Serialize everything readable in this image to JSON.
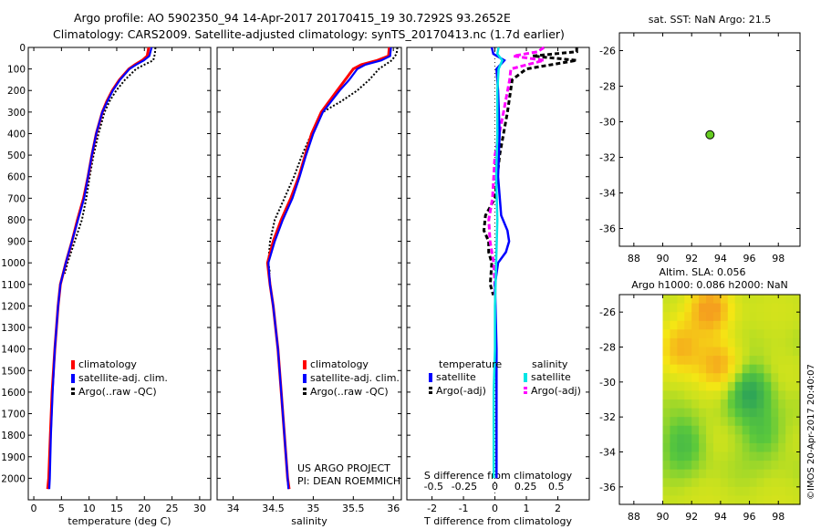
{
  "header": {
    "line1": "Argo profile: AO 5902350_94 14-Apr-2017 20170415_19 30.7292S 93.2652E",
    "line2": "Climatology: CARS2009. Satellite-adjusted climatology: synTS_20170413.nc (1.7d earlier)"
  },
  "credits": {
    "project": "US ARGO PROJECT",
    "pi": "PI: DEAN ROEMMICH",
    "imos": "©IMOS 20-Apr-2017 20:40:07"
  },
  "colors": {
    "climatology": "#ff0000",
    "satellite": "#0000ff",
    "argo": "#000000",
    "salt_sat": "#00e5e5",
    "salt_argo": "#ff00ff",
    "marker": "#66cc22"
  },
  "chart_data": [
    {
      "id": "temperature",
      "type": "line",
      "xlabel": "temperature (deg C)",
      "ylabel": "",
      "xlim": [
        -1,
        32
      ],
      "ylim": [
        2100,
        0
      ],
      "xticks": [
        0,
        5,
        10,
        15,
        20,
        25,
        30
      ],
      "yticks": [
        0,
        100,
        200,
        300,
        400,
        500,
        600,
        700,
        800,
        900,
        1000,
        1100,
        1200,
        1300,
        1400,
        1500,
        1600,
        1700,
        1800,
        1900,
        2000
      ],
      "legend": [
        "climatology",
        "satellite-adj. clim.",
        "Argo(..raw -QC)"
      ],
      "series": [
        {
          "name": "climatology",
          "depth": [
            0,
            40,
            60,
            80,
            100,
            150,
            200,
            250,
            300,
            400,
            500,
            600,
            700,
            800,
            900,
            1000,
            1100,
            1200,
            1400,
            1600,
            1800,
            2000,
            2050
          ],
          "values": [
            20.8,
            20.5,
            19.6,
            18.3,
            17.2,
            15.5,
            14.2,
            13.2,
            12.4,
            11.3,
            10.5,
            9.8,
            9.0,
            7.9,
            6.9,
            5.8,
            4.8,
            4.4,
            3.8,
            3.3,
            3.0,
            2.7,
            2.5
          ]
        },
        {
          "name": "satellite-adj. clim.",
          "depth": [
            0,
            40,
            60,
            80,
            100,
            150,
            200,
            250,
            300,
            400,
            500,
            600,
            700,
            800,
            900,
            1000,
            1100,
            1200,
            1400,
            1600,
            1800,
            2000,
            2050
          ],
          "values": [
            21.3,
            20.9,
            19.9,
            18.5,
            17.3,
            15.6,
            14.3,
            13.3,
            12.4,
            11.3,
            10.5,
            9.8,
            9.1,
            8.0,
            6.9,
            5.8,
            4.8,
            4.4,
            3.8,
            3.4,
            3.1,
            2.9,
            2.8
          ]
        },
        {
          "name": "Argo(..raw -QC)",
          "depth": [
            0,
            30,
            60,
            80,
            100,
            150,
            200,
            250,
            300,
            400,
            500,
            600,
            700,
            800,
            900,
            1000,
            1050
          ],
          "values": [
            22.0,
            21.9,
            21.6,
            20.0,
            18.5,
            16.5,
            14.9,
            13.7,
            12.8,
            11.7,
            10.8,
            10.1,
            9.5,
            8.7,
            7.4,
            6.1,
            5.6
          ]
        }
      ]
    },
    {
      "id": "salinity",
      "type": "line",
      "xlabel": "salinity",
      "xlim": [
        33.8,
        36.1
      ],
      "ylim": [
        2100,
        0
      ],
      "xticks": [
        34,
        34.5,
        35,
        35.5,
        36
      ],
      "legend": [
        "climatology",
        "satellite-adj. clim.",
        "Argo(..raw -QC)"
      ],
      "series": [
        {
          "name": "climatology",
          "depth": [
            0,
            40,
            60,
            80,
            100,
            150,
            200,
            300,
            400,
            500,
            600,
            700,
            800,
            900,
            1000,
            1100,
            1200,
            1400,
            1600,
            1800,
            2000,
            2050
          ],
          "values": [
            35.95,
            35.94,
            35.8,
            35.6,
            35.5,
            35.4,
            35.3,
            35.1,
            34.98,
            34.9,
            34.82,
            34.72,
            34.6,
            34.5,
            34.43,
            34.46,
            34.5,
            34.56,
            34.6,
            34.64,
            34.68,
            34.7
          ]
        },
        {
          "name": "satellite-adj. clim.",
          "depth": [
            0,
            40,
            60,
            80,
            100,
            150,
            200,
            300,
            400,
            500,
            600,
            700,
            800,
            900,
            1000,
            1100,
            1200,
            1400,
            1600,
            1800,
            2000,
            2050
          ],
          "values": [
            35.97,
            35.96,
            35.85,
            35.65,
            35.55,
            35.45,
            35.33,
            35.12,
            35.0,
            34.91,
            34.83,
            34.74,
            34.62,
            34.52,
            34.44,
            34.46,
            34.5,
            34.56,
            34.6,
            34.64,
            34.68,
            34.69
          ]
        },
        {
          "name": "Argo(..raw -QC)",
          "depth": [
            0,
            30,
            60,
            80,
            100,
            150,
            200,
            250,
            300,
            400,
            500,
            600,
            700,
            800,
            900,
            1000,
            1050
          ],
          "values": [
            36.05,
            36.04,
            35.98,
            35.9,
            35.82,
            35.7,
            35.55,
            35.35,
            35.12,
            34.98,
            34.86,
            34.76,
            34.64,
            34.52,
            34.46,
            34.44,
            34.46
          ]
        }
      ]
    },
    {
      "id": "differences",
      "type": "line",
      "xlabel": "T difference from climatology",
      "xlabel_top": "S difference from climatology",
      "xlim": [
        -2.8,
        3
      ],
      "ylim": [
        2100,
        0
      ],
      "xticks": [
        -2,
        -1,
        0,
        1,
        2
      ],
      "xticks_top": [
        -0.5,
        -0.25,
        0,
        0.25,
        0.5
      ],
      "legend_groups": [
        "temperature",
        "salinity"
      ],
      "legend": [
        "satellite",
        "Argo(-adj)",
        "satellite",
        "Argo(-adj)"
      ],
      "series": [
        {
          "name": "temperature satellite",
          "depth": [
            0,
            30,
            60,
            100,
            200,
            400,
            600,
            780,
            850,
            900,
            950,
            1000,
            1100,
            1400,
            1800,
            2000
          ],
          "values": [
            -0.1,
            -0.05,
            0.3,
            0.05,
            0.1,
            0.15,
            0.1,
            0.2,
            0.4,
            0.45,
            0.35,
            0.1,
            0,
            0.05,
            0.05,
            0.05
          ]
        },
        {
          "name": "temperature Argo(-adj)",
          "depth": [
            0,
            20,
            40,
            60,
            100,
            150,
            300,
            500,
            700,
            780,
            850,
            900,
            950,
            1000,
            1100,
            1150
          ],
          "values": [
            2.6,
            2.6,
            1.2,
            2.6,
            1.0,
            0.55,
            0.4,
            0.15,
            0,
            -0.3,
            -0.35,
            -0.2,
            -0.2,
            -0.1,
            -0.15,
            -0.05
          ]
        },
        {
          "name": "salinity satellite",
          "depth": [
            0,
            30,
            60,
            100,
            200,
            400,
            600,
            800,
            1000,
            1200,
            1400,
            1600,
            1800,
            2000
          ],
          "values": [
            0.03,
            0.02,
            0.06,
            0.03,
            0.02,
            0.02,
            0.01,
            0.02,
            0.01,
            0.0,
            0.0,
            -0.01,
            -0.01,
            -0.01
          ]
        },
        {
          "name": "salinity Argo(-adj)",
          "depth": [
            0,
            20,
            40,
            60,
            100,
            150,
            300,
            500,
            700,
            800,
            900,
            1000,
            1100,
            1150
          ],
          "values": [
            0.4,
            0.35,
            0.15,
            0.4,
            0.13,
            0.12,
            0.07,
            0.0,
            -0.02,
            -0.05,
            -0.04,
            -0.01,
            0.0,
            0.0
          ]
        }
      ]
    },
    {
      "id": "sst-map",
      "type": "scatter",
      "title": "sat. SST: NaN Argo: 21.5",
      "xlim": [
        87,
        99.5
      ],
      "ylim": [
        -37,
        -25
      ],
      "xticks": [
        88,
        90,
        92,
        94,
        96,
        98
      ],
      "yticks": [
        -26,
        -28,
        -30,
        -32,
        -34,
        -36
      ],
      "points": [
        {
          "x": 93.27,
          "y": -30.73
        }
      ]
    },
    {
      "id": "sla-map",
      "type": "heatmap",
      "title_line1": "Altim. SLA: 0.056",
      "title_line2": "Argo h1000: 0.086 h2000: NaN",
      "xlim": [
        87,
        99.5
      ],
      "ylim": [
        -37,
        -25
      ],
      "xticks": [
        88,
        90,
        92,
        94,
        96,
        98
      ],
      "yticks": [
        -26,
        -28,
        -30,
        -32,
        -34,
        -36
      ],
      "data_xrange": [
        90,
        99.5
      ],
      "highs": [
        {
          "x": 93.3,
          "y": -25.8,
          "v": 1.0
        },
        {
          "x": 91.2,
          "y": -28.0,
          "v": 0.9
        },
        {
          "x": 94.0,
          "y": -29.0,
          "v": 0.85
        }
      ],
      "lows": [
        {
          "x": 96.0,
          "y": -30.5,
          "v": -0.9
        },
        {
          "x": 91.5,
          "y": -33.5,
          "v": -0.6
        },
        {
          "x": 97.0,
          "y": -33.0,
          "v": -0.5
        }
      ]
    }
  ]
}
